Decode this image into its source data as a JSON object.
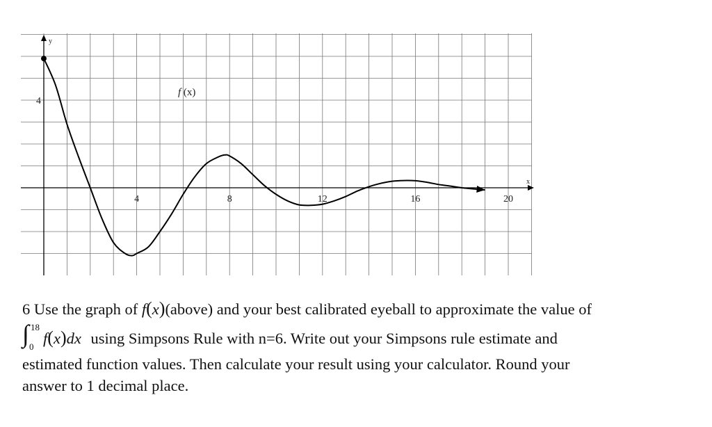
{
  "graph": {
    "y_axis_label": "y",
    "x_axis_label": "x",
    "function_label": "f (x)",
    "function_label_f": "f",
    "function_label_rest": " (x)"
  },
  "chart_data": {
    "type": "line",
    "x_ticks": [
      4,
      8,
      12,
      16,
      20
    ],
    "y_ticks": [
      4
    ],
    "xlim": [
      0,
      21
    ],
    "ylim": [
      -4,
      6
    ],
    "grid": true,
    "series": [
      {
        "x": [
          0,
          0.5,
          1,
          1.5,
          2,
          2.5,
          3,
          3.5,
          3.8,
          4,
          4.5,
          5,
          5.5,
          6,
          6.5,
          7,
          7.5,
          7.8,
          8,
          8.5,
          9,
          9.5,
          10,
          10.5,
          11,
          11.5,
          12,
          12.5,
          13,
          13.5,
          14,
          14.5,
          15,
          15.5,
          16,
          16.5,
          17,
          17.5,
          18,
          19
        ],
        "y": [
          5.9,
          4.7,
          2.9,
          1.4,
          0,
          -1.4,
          -2.5,
          -3.0,
          -3.1,
          -3.0,
          -2.7,
          -2.0,
          -1.2,
          -0.3,
          0.5,
          1.1,
          1.4,
          1.5,
          1.45,
          1.1,
          0.6,
          0.1,
          -0.3,
          -0.6,
          -0.78,
          -0.8,
          -0.75,
          -0.6,
          -0.4,
          -0.15,
          0.05,
          0.2,
          0.3,
          0.33,
          0.32,
          0.25,
          0.15,
          0.08,
          0.0,
          -0.1
        ]
      }
    ]
  },
  "problem": {
    "line1_num": "6",
    "line1_a": "Use the graph of",
    "line1_f": "f",
    "line1_x": "x",
    "line1_b": "(above) and your best calibrated eyeball to approximate the value of",
    "int_upper": "18",
    "int_lower": "0",
    "line2_f": "f",
    "line2_x": "x",
    "line2_dx": "dx",
    "line2_b": "using Simpsons Rule with n=6. Write out your Simpsons rule estimate  and",
    "line3": "estimated function values.  Then calculate your result using your calculator. Round your",
    "line4": "answer to 1 decimal place."
  }
}
